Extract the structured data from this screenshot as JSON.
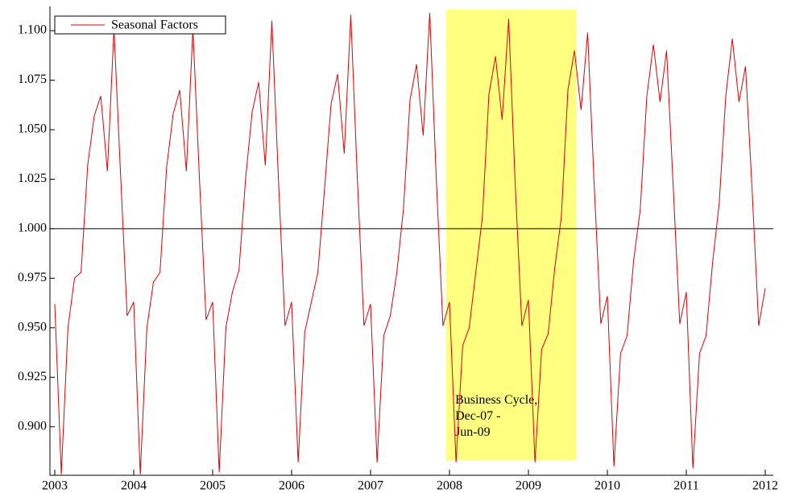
{
  "chart_data": {
    "type": "line",
    "legend_position": "upper left",
    "series": [
      {
        "name": "Seasonal Factors",
        "color": "#e00000",
        "x": [
          2003,
          2003.083,
          2003.167,
          2003.25,
          2003.333,
          2003.417,
          2003.5,
          2003.583,
          2003.667,
          2003.75,
          2003.833,
          2003.917,
          2004,
          2004.083,
          2004.167,
          2004.25,
          2004.333,
          2004.417,
          2004.5,
          2004.583,
          2004.667,
          2004.75,
          2004.833,
          2004.917,
          2005,
          2005.083,
          2005.167,
          2005.25,
          2005.333,
          2005.417,
          2005.5,
          2005.583,
          2005.667,
          2005.75,
          2005.833,
          2005.917,
          2006,
          2006.083,
          2006.167,
          2006.25,
          2006.333,
          2006.417,
          2006.5,
          2006.583,
          2006.667,
          2006.75,
          2006.833,
          2006.917,
          2007,
          2007.083,
          2007.167,
          2007.25,
          2007.333,
          2007.417,
          2007.5,
          2007.583,
          2007.667,
          2007.75,
          2007.833,
          2007.917,
          2008,
          2008.083,
          2008.167,
          2008.25,
          2008.333,
          2008.417,
          2008.5,
          2008.583,
          2008.667,
          2008.75,
          2008.833,
          2008.917,
          2009,
          2009.083,
          2009.167,
          2009.25,
          2009.333,
          2009.417,
          2009.5,
          2009.583,
          2009.667,
          2009.75,
          2009.833,
          2009.917,
          2010,
          2010.083,
          2010.167,
          2010.25,
          2010.333,
          2010.417,
          2010.5,
          2010.583,
          2010.667,
          2010.75,
          2010.833,
          2010.917,
          2011,
          2011.083,
          2011.167,
          2011.25,
          2011.333,
          2011.417,
          2011.5,
          2011.583,
          2011.667,
          2011.75,
          2011.833,
          2011.917,
          2012
        ],
        "values": [
          0.962,
          0.876,
          0.95,
          0.975,
          0.978,
          1.032,
          1.057,
          1.067,
          1.029,
          1.101,
          1.028,
          0.956,
          0.963,
          0.876,
          0.95,
          0.973,
          0.978,
          1.031,
          1.058,
          1.07,
          1.029,
          1.101,
          1.025,
          0.954,
          0.963,
          0.877,
          0.95,
          0.968,
          0.979,
          1.025,
          1.059,
          1.074,
          1.032,
          1.105,
          1.025,
          0.951,
          0.963,
          0.882,
          0.948,
          0.963,
          0.978,
          1.02,
          1.063,
          1.078,
          1.038,
          1.108,
          1.025,
          0.951,
          0.962,
          0.882,
          0.946,
          0.956,
          0.978,
          1.01,
          1.065,
          1.083,
          1.047,
          1.109,
          1.025,
          0.951,
          0.963,
          0.882,
          0.941,
          0.95,
          0.978,
          1.006,
          1.068,
          1.087,
          1.055,
          1.106,
          1.022,
          0.951,
          0.964,
          0.882,
          0.939,
          0.947,
          0.98,
          1.006,
          1.07,
          1.09,
          1.06,
          1.099,
          1.022,
          0.952,
          0.966,
          0.88,
          0.937,
          0.946,
          0.984,
          1.01,
          1.067,
          1.093,
          1.064,
          1.09,
          1.022,
          0.952,
          0.968,
          0.879,
          0.937,
          0.946,
          0.983,
          1.013,
          1.067,
          1.096,
          1.064,
          1.082,
          1.02,
          0.951,
          0.97
        ]
      }
    ],
    "reference_line": {
      "y": 1.0,
      "color": "#000000"
    },
    "shaded_region": {
      "x": [
        2007.96,
        2009.61
      ],
      "y": [
        0.883,
        1.1106
      ],
      "color": "#ffff80",
      "label": [
        "Business Cycle,",
        "Dec-07 -",
        "Jun-09"
      ]
    },
    "xlim": [
      2002.939,
      2012.102
    ],
    "ylim": [
      0.8755,
      1.1106
    ],
    "xticks": [
      2003,
      2004,
      2005,
      2006,
      2007,
      2008,
      2009,
      2010,
      2011,
      2012
    ],
    "yticks": [
      {
        "value": 0.9,
        "label": "0.900"
      },
      {
        "value": 0.925,
        "label": "0.925"
      },
      {
        "value": 0.95,
        "label": "0.950"
      },
      {
        "value": 0.975,
        "label": "0.975"
      },
      {
        "value": 1.0,
        "label": "1.000"
      },
      {
        "value": 1.025,
        "label": "1.025"
      },
      {
        "value": 1.05,
        "label": "1.050"
      },
      {
        "value": 1.075,
        "label": "1.075"
      },
      {
        "value": 1.1,
        "label": "1.100"
      }
    ]
  }
}
